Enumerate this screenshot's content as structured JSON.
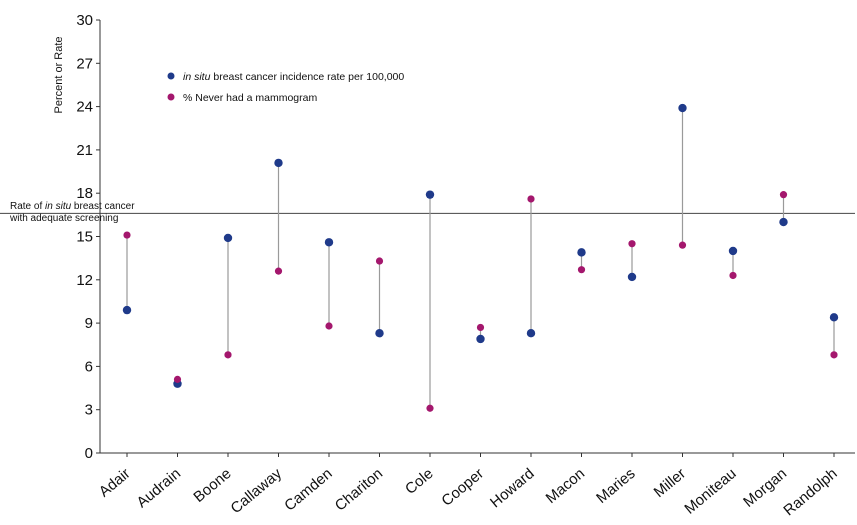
{
  "chart_data": {
    "type": "scatter",
    "ylabel": "Percent or Rate",
    "ylim": [
      0,
      30
    ],
    "yticks": [
      0,
      3,
      6,
      9,
      12,
      15,
      18,
      21,
      24,
      27,
      30
    ],
    "categories": [
      "Adair",
      "Audrain",
      "Boone",
      "Callaway",
      "Camden",
      "Chariton",
      "Cole",
      "Cooper",
      "Howard",
      "Macon",
      "Maries",
      "Miller",
      "Moniteau",
      "Morgan",
      "Randolph"
    ],
    "series": [
      {
        "name_italic": "in situ",
        "name_rest": " breast cancer incidence rate per 100,000",
        "color": "#1f3a8a",
        "values": [
          9.9,
          4.8,
          14.9,
          20.1,
          14.6,
          8.3,
          17.9,
          7.9,
          8.3,
          13.9,
          12.2,
          23.9,
          14.0,
          16.0,
          9.4
        ]
      },
      {
        "name": "% Never had a mammogram",
        "color": "#a4176d",
        "values": [
          15.1,
          5.1,
          6.8,
          12.6,
          8.8,
          13.3,
          3.1,
          8.7,
          17.6,
          12.7,
          14.5,
          14.4,
          12.3,
          17.9,
          6.8
        ]
      }
    ],
    "reference_line": {
      "value": 16.6,
      "label_pre": "Rate of ",
      "label_italic": "in situ",
      "label_post": " breast cancer",
      "label_line2": "with adequate screening"
    },
    "connector_color": "#9a9a9a",
    "legend_position": "top-left"
  }
}
